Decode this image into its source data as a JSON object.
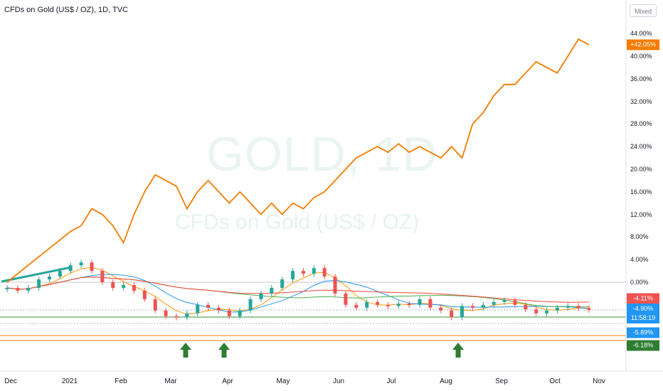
{
  "title": "CFDs on Gold (US$ / OZ), 1D, TVC",
  "mode_label": "Mixed",
  "watermark": {
    "symbol": "GOLD, 1D",
    "name": "CFDs on Gold (US$ / OZ)"
  },
  "price_tags": {
    "main_value": "+42.05%",
    "red_value": "-4.11%",
    "blue_value": "-4.90%",
    "countdown": "11:58:19",
    "lightblue_value": "-5.89%",
    "green_value": "-6.18%"
  },
  "colors": {
    "main_line": "#f57c00",
    "candle_up": "#26a69a",
    "candle_down": "#ef5350",
    "ma_fast": "#ff9800",
    "ma_mid": "#2196f3",
    "ma_slow": "#4caf50",
    "ma_long": "#f44336",
    "arrow": "#2e7d32"
  },
  "chart_data": {
    "type": "line",
    "x_labels": [
      "Dec",
      "2021",
      "Feb",
      "Mar",
      "Apr",
      "May",
      "Jun",
      "Jul",
      "Aug",
      "Sep",
      "Oct",
      "Nov"
    ],
    "y_axis": {
      "unit": "%",
      "ticks": [
        44,
        40,
        36,
        32,
        28,
        24,
        20,
        16,
        12,
        8,
        4,
        0
      ],
      "tick_labels": [
        "44.00%",
        "40.00%",
        "36.00%",
        "32.00%",
        "28.00%",
        "24.00%",
        "20.00%",
        "16.00%",
        "12.00%",
        "8.00%",
        "4.00%",
        "0.00%"
      ],
      "range": [
        -8,
        48
      ]
    },
    "series": [
      {
        "role": "comparison",
        "values": [
          0,
          1.5,
          3,
          4.5,
          6,
          7.5,
          9,
          10,
          13,
          12,
          10,
          7,
          12,
          16,
          19,
          18,
          17,
          13,
          16,
          18,
          16,
          14,
          16,
          14,
          12,
          14,
          12,
          14,
          13,
          15,
          16,
          18,
          20,
          22,
          23,
          24,
          23,
          24.5,
          23,
          24,
          23,
          22,
          24,
          22,
          28,
          30,
          33,
          35,
          35,
          37,
          39,
          38,
          37,
          40,
          43,
          42
        ]
      },
      {
        "role": "main",
        "values": [
          -1,
          -1.5,
          -1,
          0.5,
          1,
          2,
          3,
          3.5,
          2,
          0,
          -1,
          -0.5,
          -1.5,
          -3,
          -5,
          -6,
          -6.2,
          -5.5,
          -4,
          -4.5,
          -5,
          -6,
          -5,
          -3,
          -2,
          -1,
          0.5,
          2,
          1.5,
          2.5,
          1,
          -2,
          -4,
          -4.5,
          -3.5,
          -4,
          -4.2,
          -3.8,
          -4,
          -3,
          -4.5,
          -5,
          -6.2,
          -4.2,
          -4.5,
          -4,
          -3.5,
          -3.2,
          -4,
          -4.8,
          -5.5,
          -5,
          -4.5,
          -4.2,
          -4.6,
          -4.9
        ]
      }
    ]
  }
}
